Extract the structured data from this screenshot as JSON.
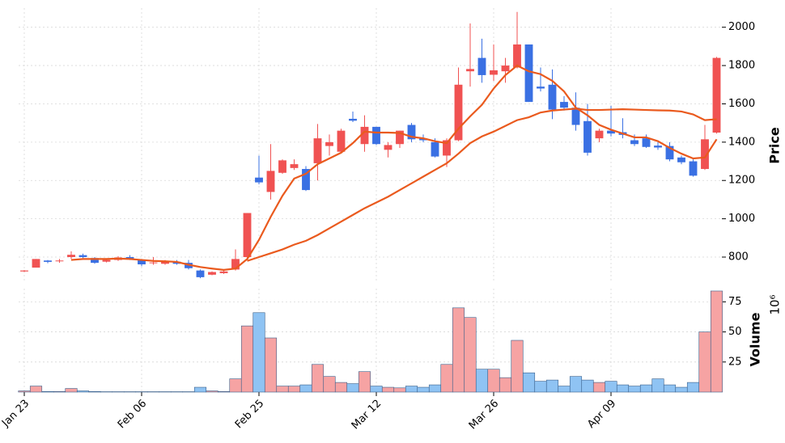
{
  "chart_data": {
    "type": "candlestick",
    "categories": [
      "Jan 23",
      null,
      null,
      null,
      null,
      null,
      null,
      null,
      null,
      null,
      "Feb 06",
      null,
      null,
      null,
      null,
      null,
      null,
      null,
      null,
      null,
      "Feb 25",
      null,
      null,
      null,
      null,
      null,
      null,
      null,
      null,
      null,
      "Mar 12",
      null,
      null,
      null,
      null,
      null,
      null,
      null,
      null,
      null,
      "Mar 26",
      null,
      null,
      null,
      null,
      null,
      null,
      null,
      null,
      null,
      "Apr 09",
      null,
      null,
      null,
      null,
      null,
      null,
      null,
      null,
      null
    ],
    "open": [
      725,
      745,
      782,
      778,
      800,
      810,
      795,
      776,
      785,
      800,
      785,
      768,
      765,
      776,
      770,
      730,
      708,
      716,
      735,
      800,
      1215,
      1140,
      1240,
      1265,
      1260,
      1290,
      1380,
      1350,
      1522,
      1390,
      1480,
      1360,
      1390,
      1490,
      1420,
      1400,
      1330,
      1410,
      1770,
      1840,
      1752,
      1770,
      1790,
      1910,
      1690,
      1700,
      1610,
      1580,
      1510,
      1420,
      1460,
      1452,
      1410,
      1420,
      1382,
      1380,
      1320,
      1300,
      1260,
      1450
    ],
    "high": [
      732,
      790,
      785,
      790,
      830,
      818,
      800,
      790,
      805,
      810,
      790,
      800,
      785,
      785,
      785,
      735,
      725,
      730,
      840,
      1030,
      1330,
      1390,
      1310,
      1310,
      1275,
      1495,
      1440,
      1470,
      1560,
      1540,
      1480,
      1400,
      1460,
      1500,
      1440,
      1420,
      1420,
      1790,
      2020,
      1940,
      1910,
      1840,
      2080,
      1910,
      1790,
      1780,
      1640,
      1660,
      1600,
      1470,
      1590,
      1525,
      1440,
      1440,
      1400,
      1400,
      1330,
      1310,
      1490,
      1845
    ],
    "low": [
      722,
      745,
      768,
      770,
      790,
      795,
      765,
      772,
      780,
      785,
      752,
      760,
      760,
      760,
      735,
      690,
      705,
      712,
      730,
      795,
      1180,
      1100,
      1235,
      1255,
      1145,
      1200,
      1330,
      1345,
      1505,
      1350,
      1385,
      1320,
      1370,
      1400,
      1400,
      1320,
      1270,
      1405,
      1690,
      1710,
      1720,
      1710,
      1785,
      1610,
      1665,
      1520,
      1565,
      1460,
      1330,
      1400,
      1430,
      1420,
      1380,
      1370,
      1360,
      1300,
      1285,
      1220,
      1255,
      1445
    ],
    "close": [
      730,
      790,
      775,
      782,
      812,
      800,
      770,
      785,
      798,
      792,
      762,
      772,
      778,
      765,
      742,
      695,
      722,
      725,
      790,
      1030,
      1190,
      1250,
      1305,
      1285,
      1150,
      1420,
      1400,
      1460,
      1512,
      1480,
      1390,
      1385,
      1460,
      1415,
      1410,
      1325,
      1410,
      1700,
      1782,
      1750,
      1775,
      1800,
      1910,
      1610,
      1680,
      1570,
      1580,
      1490,
      1345,
      1460,
      1445,
      1438,
      1390,
      1375,
      1372,
      1310,
      1295,
      1225,
      1415,
      1840
    ],
    "up_color": "#f05252",
    "down_color": "#3a70e3",
    "moving_averages": [
      {
        "color": "#ea5a1e",
        "values": [
          null,
          null,
          null,
          null,
          785,
          790,
          790,
          790,
          792,
          790,
          785,
          780,
          778,
          775,
          760,
          748,
          740,
          733,
          740,
          790,
          890,
          1010,
          1120,
          1210,
          1235,
          1285,
          1315,
          1345,
          1395,
          1455,
          1450,
          1450,
          1448,
          1428,
          1420,
          1405,
          1395,
          1470,
          1535,
          1595,
          1680,
          1750,
          1800,
          1770,
          1755,
          1720,
          1665,
          1580,
          1540,
          1490,
          1465,
          1445,
          1425,
          1425,
          1405,
          1370,
          1340,
          1315,
          1320,
          1415
        ]
      },
      {
        "color": "#ea5a1e",
        "values": [
          null,
          null,
          null,
          null,
          null,
          null,
          null,
          null,
          null,
          null,
          null,
          null,
          null,
          null,
          null,
          null,
          null,
          null,
          null,
          780,
          800,
          820,
          840,
          865,
          885,
          915,
          950,
          985,
          1020,
          1055,
          1085,
          1115,
          1150,
          1185,
          1220,
          1255,
          1290,
          1340,
          1395,
          1430,
          1455,
          1485,
          1515,
          1530,
          1555,
          1565,
          1570,
          1575,
          1568,
          1568,
          1570,
          1572,
          1570,
          1568,
          1566,
          1565,
          1560,
          1545,
          1515,
          1520
        ]
      }
    ],
    "ylabel": "Price",
    "ylim": [
      665,
      2100
    ],
    "yticks": [
      800,
      1000,
      1200,
      1400,
      1600,
      1800,
      2000
    ],
    "volume": {
      "values": [
        1,
        5,
        0.5,
        0.5,
        3,
        1,
        0.5,
        0.3,
        0.3,
        0.3,
        0.3,
        0.3,
        0.3,
        0.3,
        0.3,
        4,
        1,
        0.5,
        11,
        55,
        66,
        45,
        5,
        5,
        6,
        23,
        13,
        8,
        7,
        17,
        5,
        4,
        3.5,
        5,
        4,
        6,
        23,
        70,
        62,
        19,
        19,
        12,
        43,
        16,
        9,
        10,
        5,
        13,
        10,
        8,
        9,
        6,
        5,
        6,
        11,
        6,
        4,
        8,
        50,
        84
      ],
      "up_color": "#f6a3a3",
      "down_color": "#8fc3f3",
      "edge_color": "#3a5f8a",
      "ylabel": "Volume",
      "offset_label": "10⁶",
      "ylim": [
        0,
        86
      ],
      "yticks": [
        25,
        50,
        75
      ]
    },
    "grid": true
  }
}
